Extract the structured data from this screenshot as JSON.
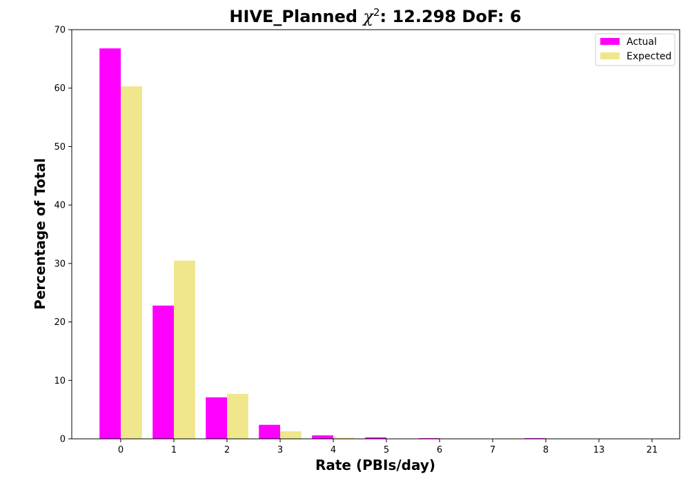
{
  "chart_data": {
    "type": "bar",
    "title_prefix": "HIVE_Planned ",
    "title_symbol": "χ",
    "title_superscript": "2",
    "title_suffix": ": 12.298 DoF: 6",
    "xlabel": "Rate (PBIs/day)",
    "ylabel": "Percentage of Total",
    "categories": [
      "0",
      "1",
      "2",
      "3",
      "4",
      "5",
      "6",
      "7",
      "8",
      "13",
      "21"
    ],
    "series": [
      {
        "name": "Actual",
        "color": "#ff00ff",
        "values": [
          66.8,
          22.8,
          7.1,
          2.4,
          0.6,
          0.25,
          0.12,
          0,
          0.12,
          0,
          0
        ]
      },
      {
        "name": "Expected",
        "color": "#f0e68c",
        "values": [
          60.3,
          30.5,
          7.7,
          1.3,
          0.2,
          0.02,
          0,
          0,
          0,
          0,
          0
        ]
      }
    ],
    "ylim": [
      0,
      70
    ],
    "yticks": [
      0,
      10,
      20,
      30,
      40,
      50,
      60,
      70
    ],
    "grid": false,
    "legend_position": "top-right"
  }
}
